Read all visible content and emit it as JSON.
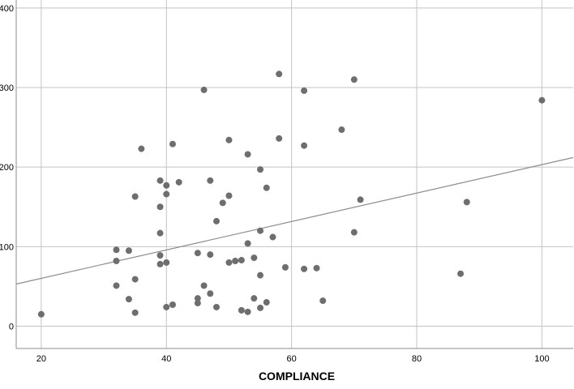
{
  "chart_data": {
    "type": "scatter",
    "title": "",
    "xlabel": "COMPLIANCE",
    "ylabel": "",
    "xlim": [
      16,
      105
    ],
    "ylim": [
      -28,
      410
    ],
    "x_ticks": [
      20,
      40,
      60,
      80,
      100
    ],
    "y_ticks": [
      0,
      100,
      200,
      300,
      400
    ],
    "x_tick_labels": [
      "20",
      "40",
      "60",
      "80",
      "100"
    ],
    "y_tick_labels": [
      "0",
      "100",
      "200",
      "300",
      "400"
    ],
    "grid": true,
    "series": [
      {
        "points": [
          [
            20,
            15
          ],
          [
            32,
            96
          ],
          [
            32,
            82
          ],
          [
            32,
            51
          ],
          [
            34,
            95
          ],
          [
            34,
            34
          ],
          [
            35,
            163
          ],
          [
            35,
            59
          ],
          [
            35,
            17
          ],
          [
            36,
            223
          ],
          [
            39,
            183
          ],
          [
            39,
            150
          ],
          [
            39,
            117
          ],
          [
            39,
            89
          ],
          [
            39,
            78
          ],
          [
            40,
            177
          ],
          [
            40,
            166
          ],
          [
            40,
            80
          ],
          [
            40,
            24
          ],
          [
            41,
            229
          ],
          [
            41,
            27
          ],
          [
            42,
            181
          ],
          [
            45,
            92
          ],
          [
            45,
            35
          ],
          [
            45,
            29
          ],
          [
            46,
            297
          ],
          [
            46,
            51
          ],
          [
            47,
            183
          ],
          [
            47,
            90
          ],
          [
            47,
            41
          ],
          [
            48,
            132
          ],
          [
            48,
            24
          ],
          [
            49,
            155
          ],
          [
            50,
            234
          ],
          [
            50,
            164
          ],
          [
            50,
            80
          ],
          [
            51,
            82
          ],
          [
            52,
            83
          ],
          [
            52,
            20
          ],
          [
            53,
            216
          ],
          [
            53,
            104
          ],
          [
            53,
            18
          ],
          [
            54,
            86
          ],
          [
            54,
            35
          ],
          [
            55,
            197
          ],
          [
            55,
            120
          ],
          [
            55,
            64
          ],
          [
            55,
            23
          ],
          [
            56,
            174
          ],
          [
            56,
            30
          ],
          [
            57,
            112
          ],
          [
            58,
            317
          ],
          [
            58,
            236
          ],
          [
            59,
            74
          ],
          [
            62,
            296
          ],
          [
            62,
            227
          ],
          [
            62,
            72
          ],
          [
            64,
            73
          ],
          [
            65,
            32
          ],
          [
            68,
            247
          ],
          [
            70,
            310
          ],
          [
            70,
            118
          ],
          [
            71,
            159
          ],
          [
            87,
            66
          ],
          [
            88,
            156
          ],
          [
            100,
            284
          ]
        ]
      }
    ],
    "fit_line": {
      "type": "linear",
      "from": [
        16,
        53
      ],
      "to": [
        105,
        212
      ]
    },
    "colors": {
      "point": "#6e6e6e",
      "fit_line": "#8c8c8c",
      "grid": "#c4c4c4",
      "frame": "#8c8c8c"
    }
  }
}
